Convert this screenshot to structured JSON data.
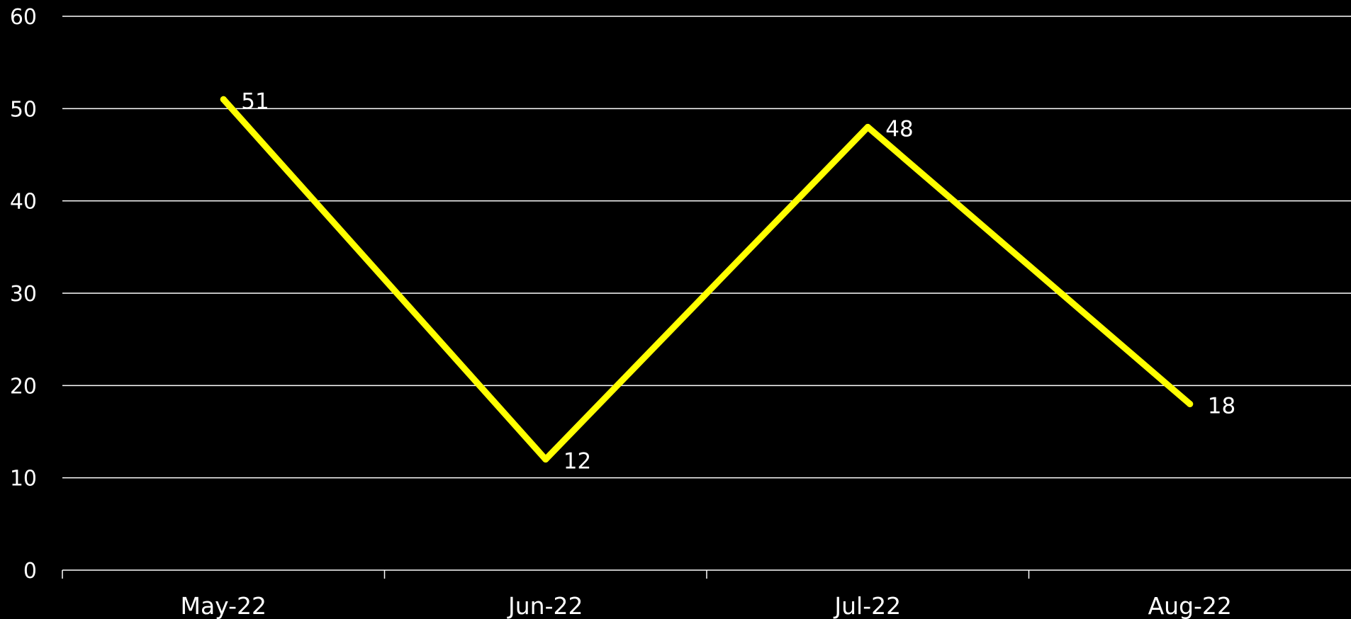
{
  "chart_data": {
    "type": "line",
    "title": "",
    "xlabel": "",
    "ylabel": "",
    "categories": [
      "May-22",
      "Jun-22",
      "Jul-22",
      "Aug-22"
    ],
    "series": [
      {
        "values": [
          51,
          12,
          48,
          18
        ]
      }
    ],
    "ylim": [
      0,
      60
    ],
    "yticks": [
      0,
      10,
      20,
      30,
      40,
      50,
      60
    ],
    "grid": true,
    "legend": "none",
    "data_labels": true,
    "colors": {
      "background": "#000000",
      "line": "#FFFF00",
      "grid": "#FFFFFF",
      "text": "#FFFFFF"
    }
  }
}
